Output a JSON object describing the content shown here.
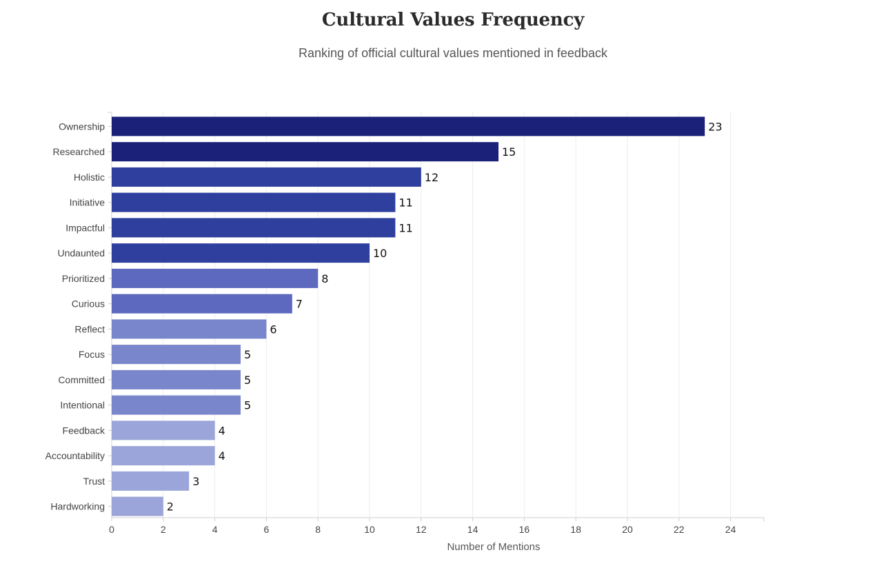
{
  "header": {
    "title": "Cultural Values Frequency",
    "subtitle": "Ranking of official cultural values mentioned in feedback"
  },
  "chart_data": {
    "type": "bar",
    "orientation": "horizontal",
    "title": "Cultural Values Frequency",
    "subtitle": "Ranking of official cultural values mentioned in feedback",
    "xlabel": "Number of Mentions",
    "ylabel": "",
    "categories": [
      "Ownership",
      "Researched",
      "Holistic",
      "Initiative",
      "Impactful",
      "Undaunted",
      "Prioritized",
      "Curious",
      "Reflect",
      "Focus",
      "Committed",
      "Intentional",
      "Feedback",
      "Accountability",
      "Trust",
      "Hardworking"
    ],
    "values": [
      23,
      15,
      12,
      11,
      11,
      10,
      8,
      7,
      6,
      5,
      5,
      5,
      4,
      4,
      3,
      2
    ],
    "bar_colors": [
      "#1b2178",
      "#1b2178",
      "#2f3f9e",
      "#2f3f9e",
      "#2f3f9e",
      "#2f3f9e",
      "#5c69bf",
      "#5c69bf",
      "#7a86cc",
      "#7a86cc",
      "#7a86cc",
      "#7a86cc",
      "#9ba5d9",
      "#9ba5d9",
      "#9ba5d9",
      "#9ba5d9"
    ],
    "xlim": [
      0,
      25.3
    ],
    "xticks": [
      0,
      2,
      4,
      6,
      8,
      10,
      12,
      14,
      16,
      18,
      20,
      22,
      24
    ],
    "grid": "vertical",
    "legend": "none",
    "data_labels": true
  }
}
